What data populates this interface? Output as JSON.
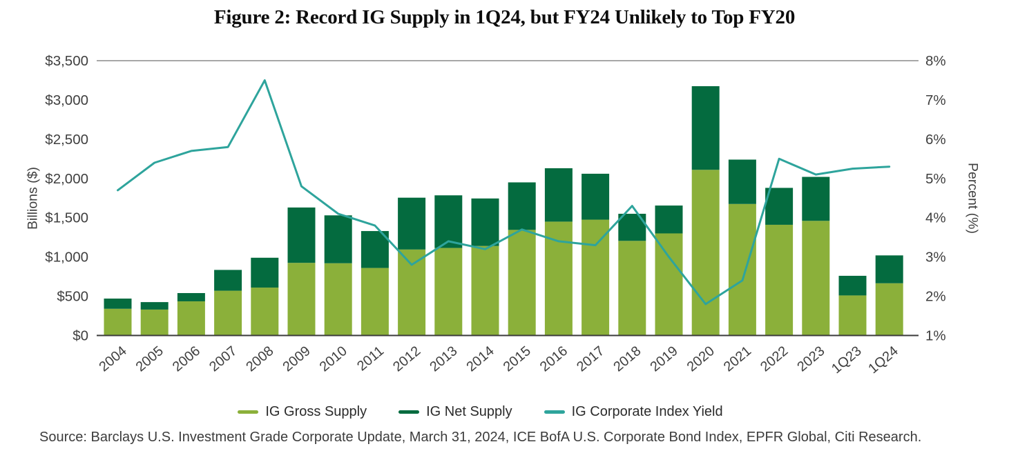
{
  "title": "Figure 2: Record IG Supply in 1Q24, but FY24 Unlikely to Top FY20",
  "source": "Source: Barclays U.S. Investment Grade Corporate Update, March 31, 2024, ICE BofA U.S. Corporate Bond Index, EPFR Global, Citi Research.",
  "colors": {
    "gross_bar": "#8BB03A",
    "net_bar": "#046B3F",
    "yield_line": "#2EA49C",
    "axis_text": "#3f3f3f",
    "top_border": "#8a8a8a",
    "x_axis_line": "#3a3a3a"
  },
  "chart_data": {
    "type": "bar",
    "subtype": "stacked-bar-with-line",
    "categories": [
      "2004",
      "2005",
      "2006",
      "2007",
      "2008",
      "2009",
      "2010",
      "2011",
      "2012",
      "2013",
      "2014",
      "2015",
      "2016",
      "2017",
      "2018",
      "2019",
      "2020",
      "2021",
      "2022",
      "2023",
      "1Q23",
      "1Q24"
    ],
    "series": [
      {
        "name": "IG Gross Supply",
        "type": "bar",
        "stack": "bottom",
        "axis": "left",
        "color": "#8BB03A",
        "values": [
          340,
          330,
          435,
          570,
          610,
          925,
          920,
          860,
          1095,
          1115,
          1140,
          1345,
          1450,
          1475,
          1205,
          1300,
          2110,
          1675,
          1410,
          1460,
          510,
          665
        ]
      },
      {
        "name": "IG Net Supply",
        "type": "bar",
        "stack": "top",
        "axis": "left",
        "color": "#046B3F",
        "values": [
          130,
          95,
          105,
          265,
          380,
          705,
          610,
          470,
          660,
          670,
          605,
          605,
          680,
          585,
          345,
          355,
          1065,
          565,
          470,
          560,
          250,
          355
        ]
      },
      {
        "name": "IG Corporate Index Yield",
        "type": "line",
        "axis": "right",
        "color": "#2EA49C",
        "values": [
          4.7,
          5.4,
          5.7,
          5.8,
          7.5,
          4.8,
          4.1,
          3.8,
          2.8,
          3.4,
          3.2,
          3.7,
          3.4,
          3.3,
          4.3,
          3.0,
          1.8,
          2.4,
          5.5,
          5.1,
          5.25,
          5.3
        ]
      }
    ],
    "title": "Figure 2: Record IG Supply in 1Q24, but FY24 Unlikely to Top FY20",
    "left_axis": {
      "title": "Billions ($)",
      "min": 0,
      "max": 3500,
      "step": 500,
      "tick_labels": [
        "$0",
        "$500",
        "$1,000",
        "$1,500",
        "$2,000",
        "$2,500",
        "$3,000",
        "$3,500"
      ]
    },
    "right_axis": {
      "title": "Percent (%)",
      "min": 1,
      "max": 8,
      "step": 1,
      "tick_labels": [
        "1%",
        "2%",
        "3%",
        "4%",
        "5%",
        "6%",
        "7%",
        "8%"
      ]
    },
    "grid": "top-border-and-baseline-only",
    "legend_position": "bottom-center"
  }
}
